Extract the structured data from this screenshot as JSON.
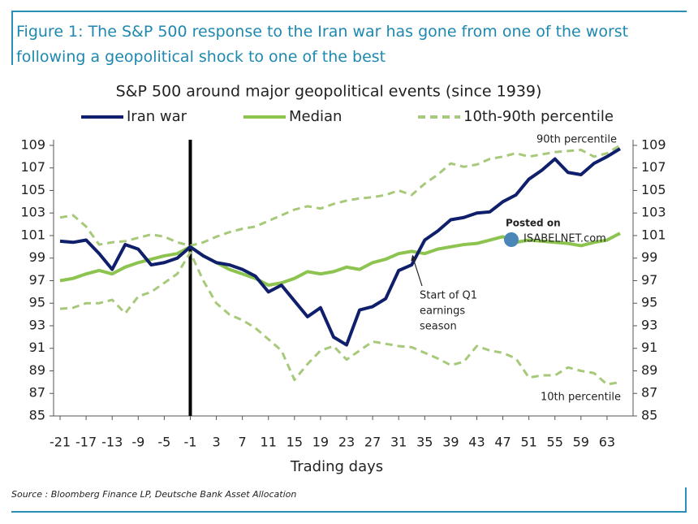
{
  "header": {
    "title": "Figure 1: The S&P 500 response to the Iran war has gone from one of the worst following a geopolitical shock to one of the best"
  },
  "chart_data": {
    "type": "line",
    "title": "S&P 500 around major geopolitical events (since 1939)",
    "xlabel": "Trading days",
    "x": [
      -21,
      -19,
      -17,
      -15,
      -13,
      -11,
      -9,
      -7,
      -5,
      -3,
      -1,
      1,
      3,
      5,
      7,
      9,
      11,
      13,
      15,
      17,
      19,
      21,
      23,
      25,
      27,
      29,
      31,
      33,
      35,
      37,
      39,
      41,
      43,
      45,
      47,
      49,
      51,
      53,
      55,
      57,
      59,
      61,
      63,
      65
    ],
    "series": [
      {
        "name": "Iran war",
        "color": "#0f1f6b",
        "dashed": false,
        "values": [
          100.5,
          100.4,
          100.6,
          99.4,
          98.0,
          100.2,
          99.8,
          98.4,
          98.6,
          99.0,
          100.0,
          99.2,
          98.6,
          98.4,
          98.0,
          97.4,
          96.0,
          96.6,
          95.2,
          93.8,
          94.6,
          92.0,
          91.3,
          94.4,
          94.7,
          95.4,
          97.9,
          98.4,
          100.6,
          101.4,
          102.4,
          102.6,
          103.0,
          103.1,
          104.0,
          104.6,
          106.0,
          106.8,
          107.8,
          106.6,
          106.4,
          107.4,
          108.0,
          108.7
        ]
      },
      {
        "name": "Median",
        "color": "#8dc34f",
        "dashed": false,
        "values": [
          97.0,
          97.2,
          97.6,
          97.9,
          97.6,
          98.2,
          98.6,
          98.9,
          99.2,
          99.4,
          100.0,
          99.2,
          98.6,
          98.0,
          97.6,
          97.2,
          96.6,
          96.8,
          97.2,
          97.8,
          97.6,
          97.8,
          98.2,
          98.0,
          98.6,
          98.9,
          99.4,
          99.6,
          99.4,
          99.8,
          100.0,
          100.2,
          100.3,
          100.6,
          100.9,
          100.4,
          100.6,
          100.5,
          100.4,
          100.3,
          100.1,
          100.4,
          100.6,
          101.2
        ]
      },
      {
        "name": "10th-90th percentile",
        "color": "#a7c97a",
        "dashed": true,
        "upper_label": "90th percentile",
        "upper": [
          102.6,
          102.8,
          101.8,
          100.2,
          100.4,
          100.5,
          100.8,
          101.1,
          100.9,
          100.4,
          100.1,
          100.4,
          100.9,
          101.3,
          101.6,
          101.8,
          102.3,
          102.8,
          103.3,
          103.6,
          103.4,
          103.8,
          104.1,
          104.3,
          104.4,
          104.6,
          105.0,
          104.6,
          105.6,
          106.4,
          107.4,
          107.1,
          107.3,
          107.8,
          108.0,
          108.3,
          108.0,
          108.2,
          108.4,
          108.5,
          108.6,
          108.0,
          108.3,
          109.0
        ],
        "lower_label": "10th percentile",
        "lower": [
          94.5,
          94.6,
          95.0,
          95.0,
          95.3,
          94.1,
          95.6,
          96.0,
          96.8,
          97.6,
          99.5,
          97.0,
          95.0,
          94.0,
          93.5,
          92.8,
          91.8,
          90.8,
          88.2,
          89.6,
          90.8,
          91.2,
          90.0,
          90.8,
          91.6,
          91.4,
          91.2,
          91.1,
          90.6,
          90.1,
          89.5,
          89.8,
          91.2,
          90.8,
          90.6,
          90.1,
          88.4,
          88.6,
          88.6,
          89.3,
          89.0,
          88.8,
          87.8,
          88.0
        ]
      }
    ],
    "xlim": [
      -22,
      67
    ],
    "xticks": [
      -21,
      -17,
      -13,
      -9,
      -5,
      -1,
      3,
      7,
      11,
      15,
      19,
      23,
      27,
      31,
      35,
      39,
      43,
      47,
      51,
      55,
      59,
      63
    ],
    "ylim": [
      85,
      109.5
    ],
    "yticks": [
      85,
      87,
      89,
      91,
      93,
      95,
      97,
      99,
      101,
      103,
      105,
      107,
      109
    ],
    "y2lim": [
      85,
      109.5
    ],
    "y2ticks": [
      85,
      87,
      89,
      91,
      93,
      95,
      97,
      99,
      101,
      103,
      105,
      107,
      109
    ],
    "event_x": -1,
    "annotation": {
      "lines": [
        "Start of Q1",
        "earnings",
        "season"
      ],
      "x": 33,
      "y": 99.6
    },
    "watermark": [
      "Posted on",
      "ISABELNET.com"
    ],
    "grid": false
  },
  "footer": {
    "source": "Source : Bloomberg Finance LP, Deutsche Bank Asset Allocation"
  }
}
